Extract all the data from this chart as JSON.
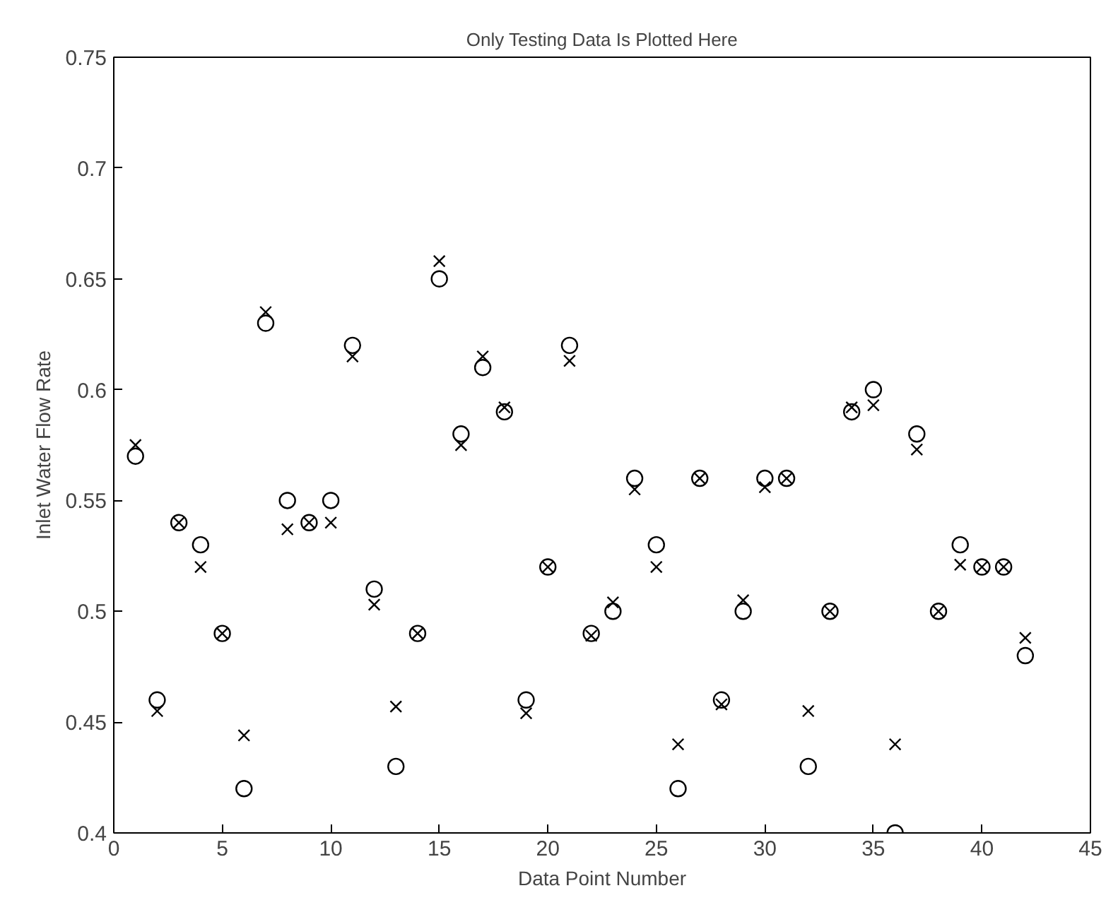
{
  "chart_data": {
    "type": "scatter",
    "title": "Only Testing Data Is Plotted Here",
    "xlabel": "Data Point Number",
    "ylabel": "Inlet Water Flow Rate",
    "x": [
      1,
      2,
      3,
      4,
      5,
      6,
      7,
      8,
      9,
      10,
      11,
      12,
      13,
      14,
      15,
      16,
      17,
      18,
      19,
      20,
      21,
      22,
      23,
      24,
      25,
      26,
      27,
      28,
      29,
      30,
      31,
      32,
      33,
      34,
      35,
      36,
      37,
      38,
      39,
      40,
      41,
      42
    ],
    "series": [
      {
        "color": "#000000",
        "marker": "circle",
        "values": [
          0.57,
          0.46,
          0.54,
          0.53,
          0.49,
          0.42,
          0.63,
          0.55,
          0.54,
          0.55,
          0.62,
          0.51,
          0.43,
          0.49,
          0.65,
          0.58,
          0.61,
          0.59,
          0.46,
          0.52,
          0.62,
          0.49,
          0.5,
          0.56,
          0.53,
          0.42,
          0.56,
          0.46,
          0.5,
          0.56,
          0.56,
          0.43,
          0.5,
          0.59,
          0.6,
          0.4,
          0.58,
          0.5,
          0.53,
          0.52,
          0.52,
          0.48
        ]
      },
      {
        "color": "#000000",
        "marker": "cross",
        "values": [
          0.575,
          0.455,
          0.54,
          0.52,
          0.49,
          0.444,
          0.635,
          0.537,
          0.54,
          0.54,
          0.615,
          0.503,
          0.457,
          0.49,
          0.658,
          0.575,
          0.615,
          0.592,
          0.454,
          0.52,
          0.613,
          0.489,
          0.504,
          0.555,
          0.52,
          0.44,
          0.56,
          0.458,
          0.505,
          0.556,
          0.56,
          0.455,
          0.5,
          0.592,
          0.593,
          0.44,
          0.573,
          0.5,
          0.521,
          0.52,
          0.52,
          0.488
        ]
      }
    ],
    "xlim": [
      0,
      45
    ],
    "xticks": [
      0,
      5,
      10,
      15,
      20,
      25,
      30,
      35,
      40,
      45
    ],
    "ylim": [
      0.4,
      0.75
    ],
    "yticks": [
      {
        "value": 0.4,
        "label": "0.4"
      },
      {
        "value": 0.45,
        "label": "0.45"
      },
      {
        "value": 0.5,
        "label": "0.5"
      },
      {
        "value": 0.55,
        "label": "0.55"
      },
      {
        "value": 0.6,
        "label": "0.6"
      },
      {
        "value": 0.65,
        "label": "0.65"
      },
      {
        "value": 0.7,
        "label": "0.7"
      },
      {
        "value": 0.75,
        "label": "0.75"
      }
    ],
    "grid": false
  }
}
